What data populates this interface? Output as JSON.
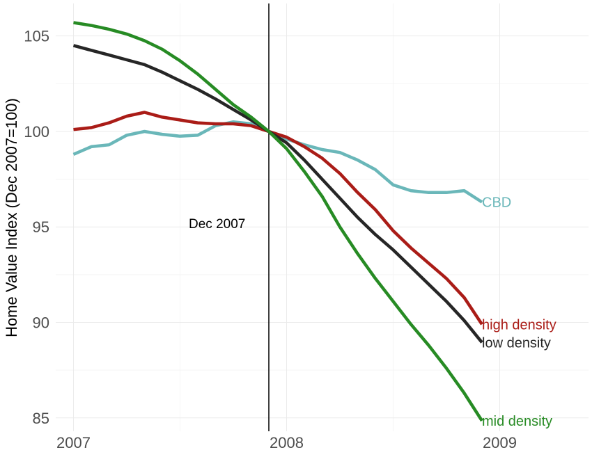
{
  "chart_data": {
    "type": "line",
    "title": "",
    "xlabel": "",
    "ylabel": "Home Value Index (Dec 2007=100)",
    "x_ticks": [
      "2007",
      "2008",
      "2009"
    ],
    "y_ticks": [
      "85",
      "90",
      "95",
      "100",
      "105"
    ],
    "xlim": [
      "2006-12",
      "2009-06"
    ],
    "ylim": [
      84.3,
      106.7
    ],
    "grid": true,
    "legend": "none (series labeled at line ends)",
    "vline": {
      "x": "2007-12",
      "label": "Dec 2007"
    },
    "x": [
      "2007-01",
      "2007-02",
      "2007-03",
      "2007-04",
      "2007-05",
      "2007-06",
      "2007-07",
      "2007-08",
      "2007-09",
      "2007-10",
      "2007-11",
      "2007-12",
      "2008-01",
      "2008-02",
      "2008-03",
      "2008-04",
      "2008-05",
      "2008-06",
      "2008-07",
      "2008-08",
      "2008-09",
      "2008-10",
      "2008-11",
      "2008-12"
    ],
    "series": [
      {
        "name": "CBD",
        "color": "#6ab7b9",
        "values": [
          98.8,
          99.2,
          99.3,
          99.8,
          100.0,
          99.85,
          99.75,
          99.8,
          100.3,
          100.5,
          100.4,
          100.0,
          99.6,
          99.3,
          99.05,
          98.9,
          98.5,
          98.0,
          97.2,
          96.9,
          96.8,
          96.8,
          96.9,
          96.3
        ]
      },
      {
        "name": "high density",
        "color": "#aa1c17",
        "values": [
          100.1,
          100.2,
          100.45,
          100.8,
          101.0,
          100.75,
          100.6,
          100.45,
          100.4,
          100.4,
          100.3,
          100.0,
          99.7,
          99.2,
          98.6,
          97.8,
          96.8,
          95.9,
          94.8,
          93.9,
          93.1,
          92.3,
          91.3,
          89.9
        ]
      },
      {
        "name": "low density",
        "color": "#262626",
        "values": [
          104.5,
          104.25,
          104.0,
          103.75,
          103.5,
          103.1,
          102.65,
          102.2,
          101.7,
          101.15,
          100.6,
          100.0,
          99.4,
          98.5,
          97.5,
          96.5,
          95.5,
          94.6,
          93.8,
          92.9,
          92.0,
          91.1,
          90.1,
          88.95
        ]
      },
      {
        "name": "mid density",
        "color": "#278b24",
        "values": [
          105.7,
          105.55,
          105.35,
          105.1,
          104.75,
          104.3,
          103.7,
          103.0,
          102.2,
          101.4,
          100.75,
          100.0,
          99.1,
          97.9,
          96.6,
          95.0,
          93.6,
          92.3,
          91.1,
          89.9,
          88.8,
          87.6,
          86.3,
          84.85
        ]
      }
    ]
  }
}
